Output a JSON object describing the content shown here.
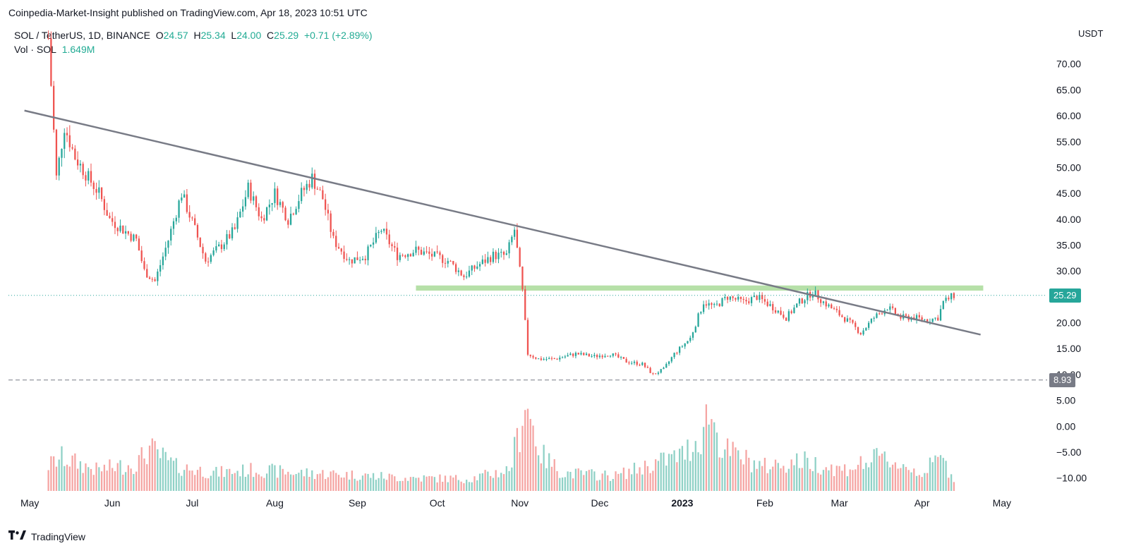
{
  "header": {
    "published": "Coinpedia-Market-Insight published on TradingView.com, Apr 18, 2023 10:51 UTC"
  },
  "legend": {
    "symbol": "SOL / TetherUS, 1D, BINANCE",
    "o_label": "O",
    "o": "24.57",
    "h_label": "H",
    "h": "25.34",
    "l_label": "L",
    "l": "24.00",
    "c_label": "C",
    "c": "25.29",
    "change": "+0.71 (+2.89%)",
    "vol_label": "Vol · SOL",
    "vol_value": "1.649M"
  },
  "axis": {
    "currency": "USDT"
  },
  "footer": {
    "brand": "TradingView"
  },
  "colors": {
    "up": "#26a69a",
    "down": "#ef5350",
    "vol_up": "#8fd1c6",
    "vol_down": "#f5a5a3",
    "trendline": "#787b86",
    "resistance": "#b6e0a8",
    "last_price_tag": "#26a69a",
    "support_tag": "#787b86"
  },
  "chart_data": {
    "type": "candlestick",
    "y_tick_labels": [
      "70.00",
      "65.00",
      "60.00",
      "55.00",
      "50.00",
      "45.00",
      "40.00",
      "35.00",
      "30.00",
      "25.00",
      "20.00",
      "15.00",
      "10.00",
      "5.00",
      "0.00",
      "−5.00",
      "−10.00"
    ],
    "y_ticks": [
      70,
      65,
      60,
      55,
      50,
      45,
      40,
      35,
      30,
      25,
      20,
      15,
      10,
      5,
      0,
      -5,
      -10
    ],
    "ylim": [
      -12.5,
      78
    ],
    "x_labels": [
      "May",
      "Jun",
      "Jul",
      "Aug",
      "Sep",
      "Oct",
      "Nov",
      "Dec",
      "2023",
      "Feb",
      "Mar",
      "Apr",
      "May"
    ],
    "x_label_days": [
      0,
      31,
      61,
      92,
      123,
      153,
      184,
      214,
      245,
      276,
      304,
      335,
      365
    ],
    "xlim_days": [
      -8,
      382
    ],
    "last_price": {
      "value": 25.29,
      "label": "25.29"
    },
    "support": {
      "value": 8.93,
      "label": "8.93"
    },
    "resistance_band": {
      "x_start_day": 145,
      "x_end_day": 358,
      "y_low": 26.2,
      "y_high": 27.2
    },
    "trendline": {
      "x1_day": -2,
      "y1": 61.0,
      "x2_day": 357,
      "y2": 17.7
    },
    "price_path": [
      {
        "day": 7,
        "close": 75
      },
      {
        "day": 10,
        "close": 48
      },
      {
        "day": 13,
        "close": 58
      },
      {
        "day": 17,
        "close": 52
      },
      {
        "day": 22,
        "close": 48
      },
      {
        "day": 26,
        "close": 45
      },
      {
        "day": 30,
        "close": 40
      },
      {
        "day": 35,
        "close": 38
      },
      {
        "day": 40,
        "close": 36
      },
      {
        "day": 43,
        "close": 30
      },
      {
        "day": 47,
        "close": 28
      },
      {
        "day": 52,
        "close": 36
      },
      {
        "day": 57,
        "close": 45
      },
      {
        "day": 62,
        "close": 38
      },
      {
        "day": 66,
        "close": 32
      },
      {
        "day": 72,
        "close": 35
      },
      {
        "day": 77,
        "close": 38
      },
      {
        "day": 82,
        "close": 46
      },
      {
        "day": 87,
        "close": 40
      },
      {
        "day": 92,
        "close": 45
      },
      {
        "day": 97,
        "close": 40
      },
      {
        "day": 102,
        "close": 45
      },
      {
        "day": 106,
        "close": 48
      },
      {
        "day": 110,
        "close": 44
      },
      {
        "day": 114,
        "close": 36
      },
      {
        "day": 120,
        "close": 32
      },
      {
        "day": 126,
        "close": 33
      },
      {
        "day": 132,
        "close": 38
      },
      {
        "day": 138,
        "close": 33
      },
      {
        "day": 145,
        "close": 34
      },
      {
        "day": 151,
        "close": 33
      },
      {
        "day": 157,
        "close": 32
      },
      {
        "day": 163,
        "close": 29
      },
      {
        "day": 168,
        "close": 31
      },
      {
        "day": 174,
        "close": 33
      },
      {
        "day": 179,
        "close": 33
      },
      {
        "day": 182,
        "close": 38
      },
      {
        "day": 185,
        "close": 26
      },
      {
        "day": 187,
        "close": 14
      },
      {
        "day": 191,
        "close": 13
      },
      {
        "day": 197,
        "close": 13
      },
      {
        "day": 205,
        "close": 14
      },
      {
        "day": 212,
        "close": 13.5
      },
      {
        "day": 218,
        "close": 14
      },
      {
        "day": 224,
        "close": 12.5
      },
      {
        "day": 230,
        "close": 12
      },
      {
        "day": 234,
        "close": 10
      },
      {
        "day": 238,
        "close": 11
      },
      {
        "day": 242,
        "close": 14
      },
      {
        "day": 248,
        "close": 17
      },
      {
        "day": 253,
        "close": 24
      },
      {
        "day": 257,
        "close": 23
      },
      {
        "day": 262,
        "close": 25
      },
      {
        "day": 268,
        "close": 24
      },
      {
        "day": 273,
        "close": 25
      },
      {
        "day": 279,
        "close": 23
      },
      {
        "day": 284,
        "close": 21
      },
      {
        "day": 289,
        "close": 24
      },
      {
        "day": 294,
        "close": 26
      },
      {
        "day": 298,
        "close": 24
      },
      {
        "day": 303,
        "close": 22
      },
      {
        "day": 308,
        "close": 20
      },
      {
        "day": 312,
        "close": 18
      },
      {
        "day": 317,
        "close": 21
      },
      {
        "day": 322,
        "close": 23
      },
      {
        "day": 327,
        "close": 21
      },
      {
        "day": 332,
        "close": 21
      },
      {
        "day": 337,
        "close": 20.5
      },
      {
        "day": 341,
        "close": 21
      },
      {
        "day": 343,
        "close": 24
      },
      {
        "day": 347,
        "close": 25.3
      }
    ],
    "volume_path": [
      {
        "day": 0,
        "v": 0.25
      },
      {
        "day": 12,
        "v": 0.55
      },
      {
        "day": 25,
        "v": 0.35
      },
      {
        "day": 40,
        "v": 0.45
      },
      {
        "day": 45,
        "v": 0.7
      },
      {
        "day": 55,
        "v": 0.4
      },
      {
        "day": 70,
        "v": 0.3
      },
      {
        "day": 85,
        "v": 0.35
      },
      {
        "day": 100,
        "v": 0.3
      },
      {
        "day": 115,
        "v": 0.28
      },
      {
        "day": 140,
        "v": 0.22
      },
      {
        "day": 165,
        "v": 0.2
      },
      {
        "day": 180,
        "v": 0.35
      },
      {
        "day": 184,
        "v": 1.0
      },
      {
        "day": 186,
        "v": 1.55
      },
      {
        "day": 188,
        "v": 1.2
      },
      {
        "day": 192,
        "v": 0.6
      },
      {
        "day": 200,
        "v": 0.3
      },
      {
        "day": 220,
        "v": 0.25
      },
      {
        "day": 234,
        "v": 0.45
      },
      {
        "day": 245,
        "v": 0.6
      },
      {
        "day": 252,
        "v": 0.9
      },
      {
        "day": 255,
        "v": 1.35
      },
      {
        "day": 260,
        "v": 0.7
      },
      {
        "day": 275,
        "v": 0.4
      },
      {
        "day": 290,
        "v": 0.5
      },
      {
        "day": 305,
        "v": 0.35
      },
      {
        "day": 320,
        "v": 0.55
      },
      {
        "day": 335,
        "v": 0.3
      },
      {
        "day": 342,
        "v": 0.55
      },
      {
        "day": 347,
        "v": 0.2
      }
    ]
  }
}
